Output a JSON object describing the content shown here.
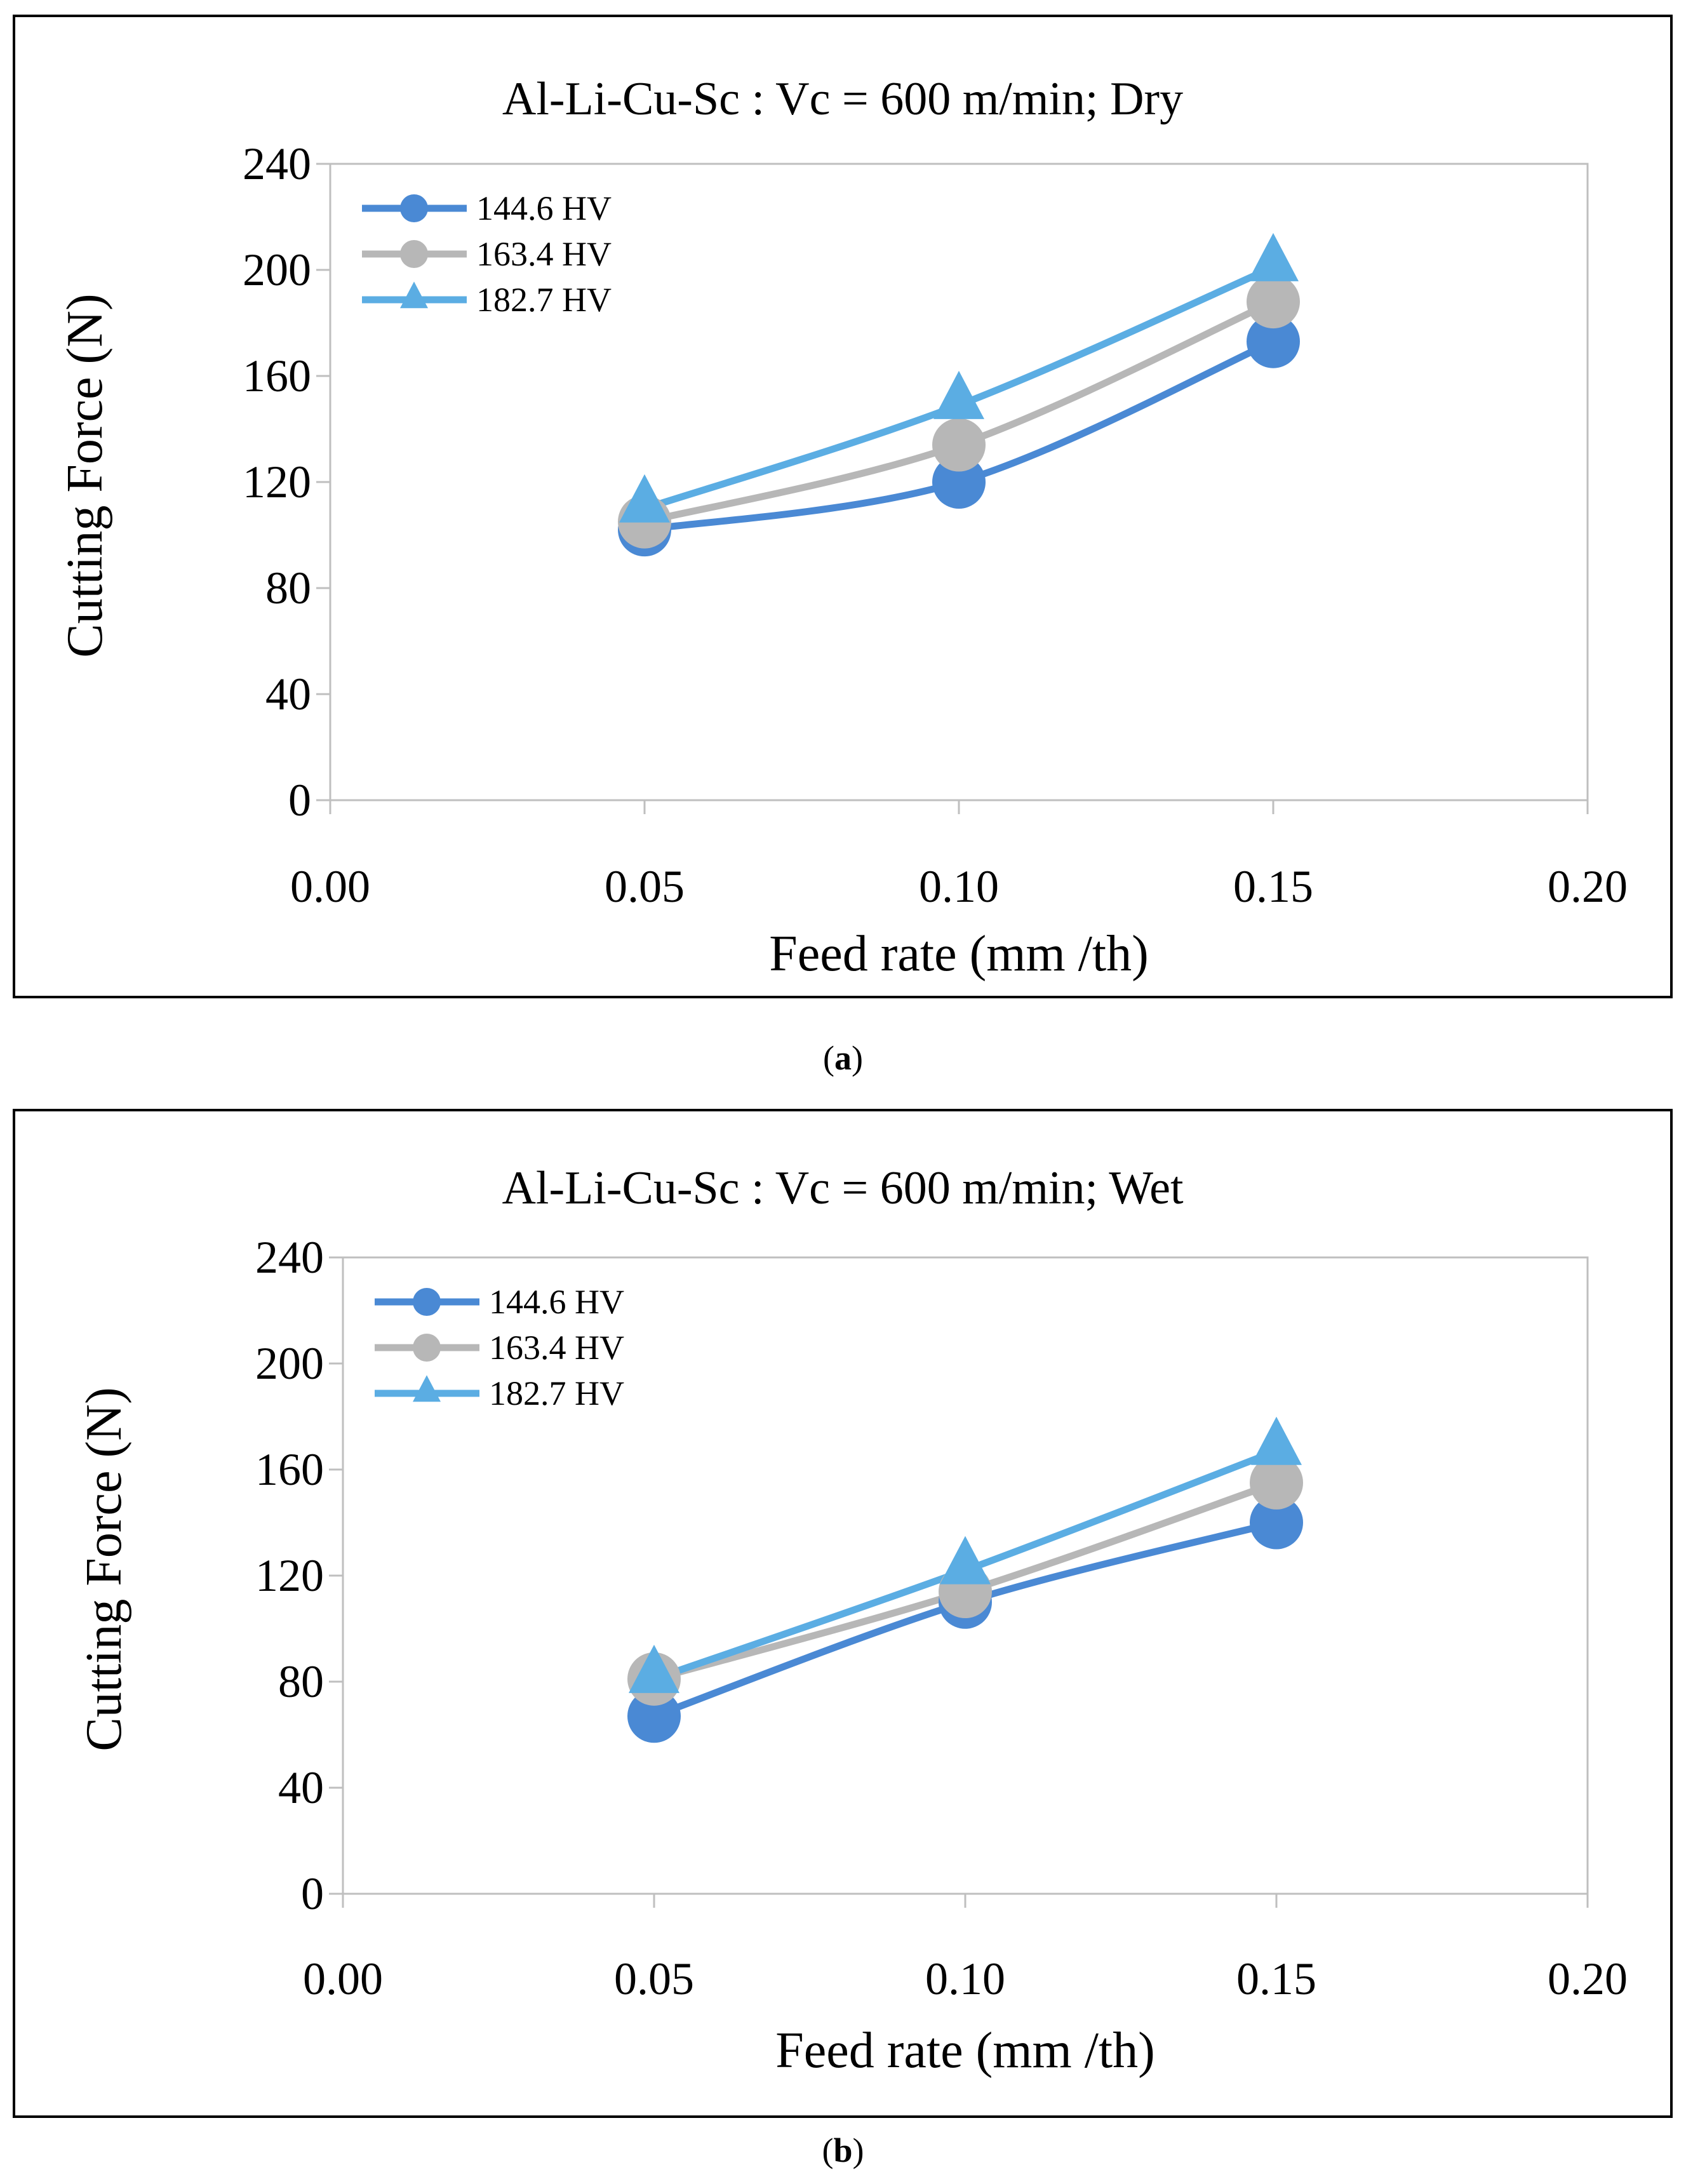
{
  "colors": {
    "series": [
      "#4A89D4",
      "#B7B7B7",
      "#5BADE3"
    ],
    "frame": "#000000",
    "axis": "#BFBFBF"
  },
  "captions": [
    {
      "open": "(",
      "letter": "a",
      "close": ")"
    },
    {
      "open": "(",
      "letter": "b",
      "close": ")"
    }
  ],
  "chart_data": [
    {
      "type": "line",
      "title": "Al-Li-Cu-Sc : Vc = 600 m/min; Dry",
      "xlabel": "Feed rate (mm /th)",
      "ylabel": "Cutting Force (N)",
      "xlim": [
        0.0,
        0.2
      ],
      "ylim": [
        0,
        240
      ],
      "x_ticks": [
        "0.00",
        "0.05",
        "0.10",
        "0.15",
        "0.20"
      ],
      "y_ticks": [
        "0",
        "40",
        "80",
        "120",
        "160",
        "200",
        "240"
      ],
      "x": [
        0.05,
        0.1,
        0.15
      ],
      "legend_position": "top-left",
      "grid": false,
      "series": [
        {
          "name": "144.6 HV",
          "marker": "circle",
          "values": [
            102,
            120,
            173
          ]
        },
        {
          "name": "163.4 HV",
          "marker": "circle",
          "values": [
            105,
            134,
            188
          ]
        },
        {
          "name": "182.7 HV",
          "marker": "triangle",
          "values": [
            110,
            149,
            201
          ]
        }
      ]
    },
    {
      "type": "line",
      "title": "Al-Li-Cu-Sc : Vc = 600 m/min; Wet",
      "xlabel": "Feed rate (mm /th)",
      "ylabel": "Cutting Force (N)",
      "xlim": [
        0.0,
        0.2
      ],
      "ylim": [
        0,
        240
      ],
      "x_ticks": [
        "0.00",
        "0.05",
        "0.10",
        "0.15",
        "0.20"
      ],
      "y_ticks": [
        "0",
        "40",
        "80",
        "120",
        "160",
        "200",
        "240"
      ],
      "x": [
        0.05,
        0.1,
        0.15
      ],
      "legend_position": "top-left",
      "grid": false,
      "series": [
        {
          "name": "144.6 HV",
          "marker": "circle",
          "values": [
            67,
            110,
            140
          ]
        },
        {
          "name": "163.4 HV",
          "marker": "circle",
          "values": [
            81,
            114,
            155
          ]
        },
        {
          "name": "182.7 HV",
          "marker": "triangle",
          "values": [
            81,
            122,
            167
          ]
        }
      ]
    }
  ]
}
